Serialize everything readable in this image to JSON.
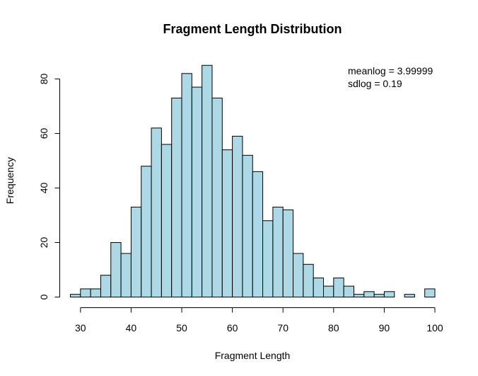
{
  "chart_data": {
    "type": "bar",
    "title": "Fragment Length Distribution",
    "xlabel": "Fragment Length",
    "ylabel": "Frequency",
    "bin_width": 2,
    "bin_start": 28,
    "counts": [
      1,
      3,
      3,
      8,
      20,
      16,
      33,
      48,
      62,
      56,
      73,
      82,
      77,
      85,
      73,
      54,
      59,
      52,
      46,
      28,
      33,
      32,
      16,
      12,
      7,
      4,
      7,
      4,
      1,
      2,
      1,
      2,
      0,
      1,
      0,
      3
    ],
    "xlim": [
      28,
      100
    ],
    "ylim": [
      0,
      88
    ],
    "xticks": [
      30,
      40,
      50,
      60,
      70,
      80,
      90,
      100
    ],
    "yticks": [
      0,
      20,
      40,
      60,
      80
    ],
    "bar_color": "#ADD8E6",
    "annotations": [
      "meanlog = 3.99999",
      "sdlog = 0.19"
    ]
  }
}
